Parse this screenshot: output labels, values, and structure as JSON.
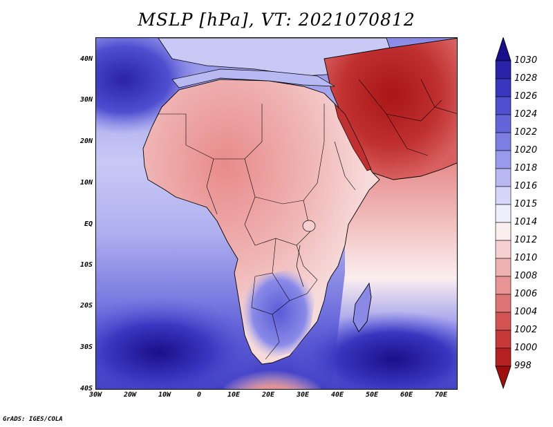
{
  "title": "MSLP [hPa], VT: 2021070812",
  "credit": "GrADS: IGES/COLA",
  "lat_labels": [
    "40N",
    "30N",
    "20N",
    "10N",
    "EQ",
    "10S",
    "20S",
    "30S",
    "40S"
  ],
  "lon_labels": [
    "30W",
    "20W",
    "10W",
    "0",
    "10E",
    "20E",
    "30E",
    "40E",
    "50E",
    "60E",
    "70E"
  ],
  "colorbar": {
    "levels": [
      "1030",
      "1028",
      "1026",
      "1024",
      "1022",
      "1020",
      "1018",
      "1016",
      "1015",
      "1014",
      "1012",
      "1010",
      "1008",
      "1006",
      "1004",
      "1002",
      "1000",
      "998"
    ],
    "colors": [
      "#1a0f8a",
      "#2a22a8",
      "#3a36c0",
      "#4f4fd0",
      "#6565db",
      "#7d7de4",
      "#9a9aec",
      "#b8b8f3",
      "#d6d6fa",
      "#eeeefd",
      "#fbeeee",
      "#f6d0d0",
      "#efb2b2",
      "#e89494",
      "#df7474",
      "#d45454",
      "#c73838",
      "#b52020",
      "#9e1010"
    ]
  },
  "map": {
    "lon_range": [
      -30,
      75
    ],
    "lat_range": [
      -40,
      45
    ],
    "land_color": "#f0c4c4",
    "ocean_color": "#a8a8ee"
  }
}
